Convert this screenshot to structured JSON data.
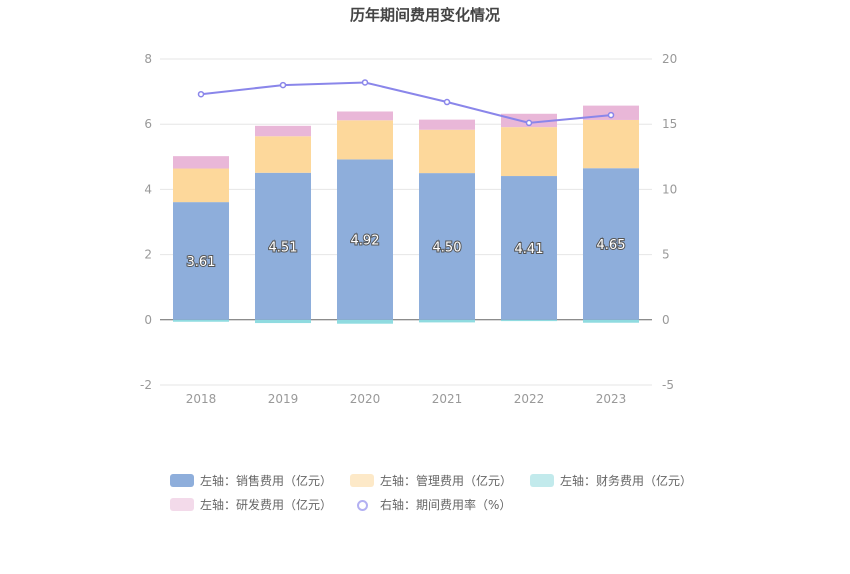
{
  "chart_data": {
    "type": "bar",
    "title": "历年期间费用变化情况",
    "categories": [
      "2018",
      "2019",
      "2020",
      "2021",
      "2022",
      "2023"
    ],
    "series": [
      {
        "name": "左轴：销售费用（亿元）",
        "axis": "left",
        "stack": "s",
        "color": "#8eaedb",
        "values": [
          3.61,
          4.51,
          4.92,
          4.5,
          4.41,
          4.65
        ],
        "labels": [
          "3.61",
          "4.51",
          "4.92",
          "4.50",
          "4.41",
          "4.65"
        ]
      },
      {
        "name": "左轴：管理费用（亿元）",
        "axis": "left",
        "stack": "s",
        "color": "#fdd89b",
        "values": [
          1.03,
          1.12,
          1.2,
          1.33,
          1.5,
          1.48
        ]
      },
      {
        "name": "左轴：财务费用（亿元）",
        "axis": "left",
        "stack": "s",
        "color": "#8fdbe0",
        "values": [
          -0.06,
          -0.1,
          -0.12,
          -0.08,
          -0.04,
          -0.09
        ]
      },
      {
        "name": "左轴：研发费用（亿元）",
        "axis": "left",
        "stack": "s",
        "color": "#e9b7d8",
        "values": [
          0.38,
          0.32,
          0.27,
          0.31,
          0.41,
          0.44
        ]
      },
      {
        "name": "右轴：期间费用率（%）",
        "axis": "right",
        "type": "line",
        "color": "#8a86ea",
        "values": [
          17.3,
          18.0,
          18.2,
          16.7,
          15.1,
          15.7
        ]
      }
    ],
    "left_axis": {
      "min": -2,
      "max": 8,
      "ticks": [
        -2,
        0,
        2,
        4,
        6,
        8
      ]
    },
    "right_axis": {
      "min": -5,
      "max": 20,
      "ticks": [
        -5,
        0,
        5,
        10,
        15,
        20
      ]
    },
    "legend_position": "bottom"
  }
}
